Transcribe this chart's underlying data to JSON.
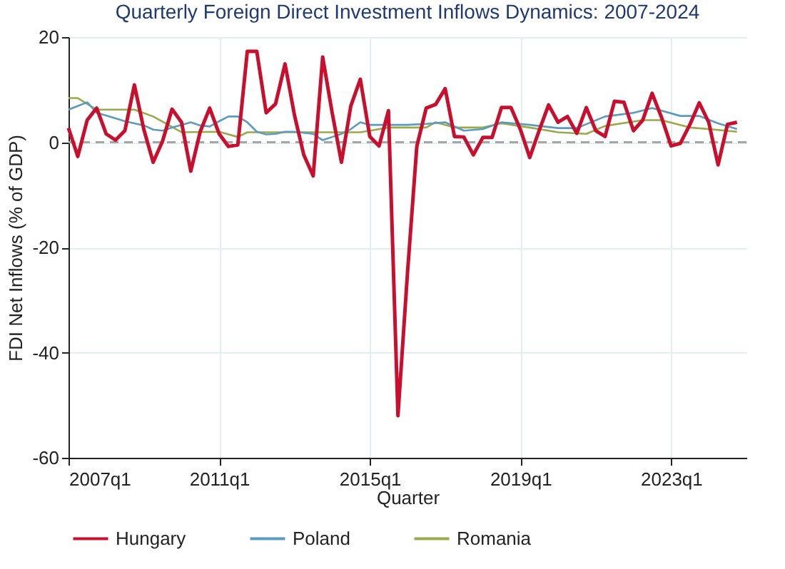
{
  "chart_data": {
    "type": "line",
    "title": "Quarterly Foreign Direct Investment Inflows Dynamics: 2007-2024",
    "xlabel": "Quarter",
    "ylabel": "FDI Net Inflows (% of GDP)",
    "xlim": [
      "2007-01",
      "2025-01"
    ],
    "xticks": [
      {
        "value": "2007-01",
        "label": "2007q1"
      },
      {
        "value": "2011-01",
        "label": "2011q1"
      },
      {
        "value": "2015-01",
        "label": "2015q1"
      },
      {
        "value": "2019-01",
        "label": "2019q1"
      },
      {
        "value": "2023-01",
        "label": "2023q1"
      }
    ],
    "ylim": [
      -60,
      20
    ],
    "yticks": [
      -60,
      -40,
      -20,
      0,
      20
    ],
    "grid": true,
    "legend": "bottom",
    "line_style": "solid",
    "marker": "none",
    "ref_lines": [
      {
        "axis": "y",
        "value": 0,
        "color": "#a6a6a6",
        "line_style": "dashed"
      }
    ],
    "series": [
      {
        "name": "Hungary",
        "color": "#c8102e",
        "x": [
          "2007-01",
          "2007-04",
          "2007-07",
          "2007-10",
          "2008-01",
          "2008-04",
          "2008-07",
          "2008-10",
          "2009-01",
          "2009-04",
          "2009-07",
          "2009-10",
          "2010-01",
          "2010-04",
          "2010-07",
          "2010-10",
          "2011-01",
          "2011-04",
          "2011-07",
          "2011-10",
          "2012-01",
          "2012-04",
          "2012-07",
          "2012-10",
          "2013-01",
          "2013-04",
          "2013-07",
          "2013-10",
          "2014-01",
          "2014-04",
          "2014-07",
          "2014-10",
          "2015-01",
          "2015-04",
          "2015-07",
          "2015-10",
          "2016-01",
          "2016-04",
          "2016-07",
          "2016-10",
          "2017-01",
          "2017-04",
          "2017-07",
          "2017-10",
          "2018-01",
          "2018-04",
          "2018-07",
          "2018-10",
          "2019-01",
          "2019-04",
          "2019-07",
          "2019-10",
          "2020-01",
          "2020-04",
          "2020-07",
          "2020-10",
          "2021-01",
          "2021-04",
          "2021-07",
          "2021-10",
          "2022-01",
          "2022-04",
          "2022-07",
          "2022-10",
          "2023-01",
          "2023-04",
          "2023-07",
          "2023-10",
          "2024-01",
          "2024-04",
          "2024-07",
          "2024-10"
        ],
        "values": [
          2.7,
          -2.7,
          4.2,
          6.5,
          1.6,
          0.4,
          2.2,
          10.9,
          2.4,
          -3.8,
          0.2,
          6.3,
          3.8,
          -5.5,
          2,
          6.5,
          1.6,
          -0.8,
          -0.5,
          17.3,
          17.3,
          5.6,
          7.3,
          14.9,
          5.1,
          -2.4,
          -6.4,
          16.2,
          5.6,
          -3.8,
          6.9,
          12,
          1.1,
          -0.7,
          6,
          -52,
          -25,
          -0.8,
          6.5,
          7.2,
          10.2,
          1.1,
          1,
          -2.4,
          0.9,
          0.9,
          6.6,
          6.6,
          2.4,
          -2.9,
          2.2,
          7.1,
          3.8,
          4.9,
          1.7,
          6.6,
          2.2,
          1.1,
          7.8,
          7.6,
          2.2,
          4.2,
          9.3,
          4.7,
          -0.7,
          -0.2,
          3.3,
          7.5,
          3.8,
          -4.3,
          3.4,
          3.8
        ]
      },
      {
        "name": "Poland",
        "color": "#5b9bbf",
        "x": [
          "2007-01",
          "2007-07",
          "2007-10",
          "2008-01",
          "2008-07",
          "2009-01",
          "2009-04",
          "2009-07",
          "2009-10",
          "2010-01",
          "2010-04",
          "2010-07",
          "2010-10",
          "2011-01",
          "2011-04",
          "2011-07",
          "2011-10",
          "2012-01",
          "2012-04",
          "2012-07",
          "2012-10",
          "2013-01",
          "2013-04",
          "2013-07",
          "2013-10",
          "2014-01",
          "2014-04",
          "2014-07",
          "2014-10",
          "2015-01",
          "2015-07",
          "2016-01",
          "2016-07",
          "2017-01",
          "2017-07",
          "2018-01",
          "2018-07",
          "2019-04",
          "2020-01",
          "2020-07",
          "2021-04",
          "2022-01",
          "2022-07",
          "2023-04",
          "2023-10",
          "2024-04",
          "2024-10"
        ],
        "values": [
          6.2,
          7.6,
          5.6,
          5.1,
          4,
          3.2,
          2.4,
          2.2,
          2.8,
          3.3,
          3.8,
          3.2,
          3,
          4,
          4.9,
          4.9,
          3.8,
          2,
          1.5,
          1.6,
          2,
          2,
          1.8,
          1.6,
          0.4,
          1,
          1.6,
          2.5,
          3.8,
          3.3,
          3.3,
          3.3,
          3.5,
          3.8,
          2.2,
          2.5,
          3.8,
          3.3,
          2.7,
          2.7,
          4.9,
          5.6,
          6.5,
          5,
          5,
          3.6,
          2.5
        ]
      },
      {
        "name": "Romania",
        "color": "#9aaa4a",
        "x": [
          "2007-01",
          "2007-04",
          "2007-10",
          "2008-04",
          "2008-10",
          "2009-04",
          "2010-01",
          "2011-01",
          "2011-07",
          "2011-10",
          "2013-01",
          "2014-10",
          "2015-07",
          "2016-01",
          "2016-07",
          "2016-10",
          "2017-04",
          "2018-01",
          "2018-07",
          "2019-04",
          "2020-01",
          "2020-10",
          "2021-04",
          "2022-04",
          "2022-10",
          "2023-07",
          "2024-01",
          "2024-10"
        ],
        "values": [
          8.4,
          8.4,
          6.2,
          6.2,
          6.2,
          4.9,
          1.9,
          2,
          1,
          1.9,
          1.9,
          1.9,
          2.8,
          2.8,
          2.8,
          3.8,
          2.8,
          2.8,
          3.6,
          2.8,
          1.9,
          1.6,
          3.1,
          4.2,
          4.2,
          2.8,
          2.5,
          2
        ]
      }
    ]
  }
}
